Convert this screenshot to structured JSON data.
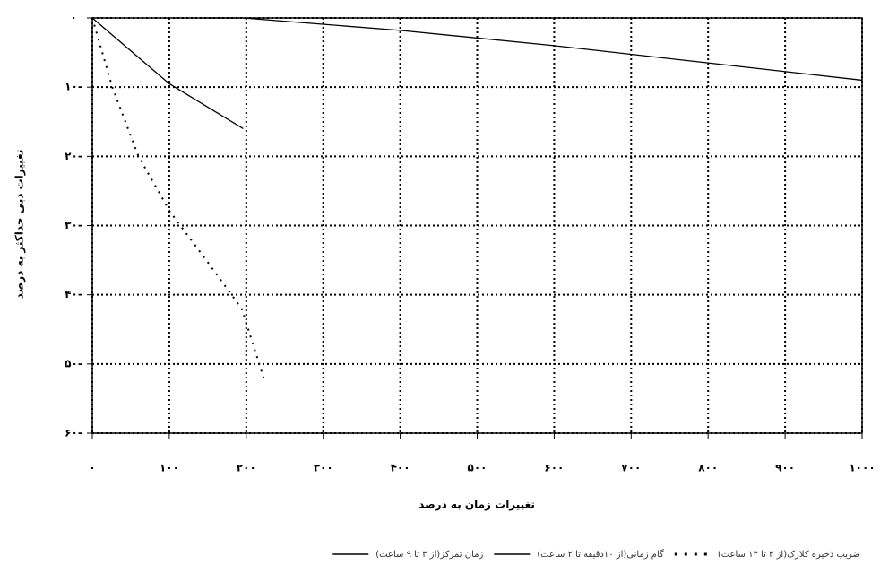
{
  "chart_data": {
    "type": "line",
    "xlabel": "تغییرات زمان به درصد",
    "ylabel": "تغییرات دبی حداکثر به درصد",
    "xlim": [
      0,
      1000
    ],
    "xticks": [
      {
        "value": 0,
        "label": "۰"
      },
      {
        "value": 100,
        "label": "۱۰۰"
      },
      {
        "value": 200,
        "label": "۲۰۰"
      },
      {
        "value": 300,
        "label": "۳۰۰"
      },
      {
        "value": 400,
        "label": "۴۰۰"
      },
      {
        "value": 500,
        "label": "۵۰۰"
      },
      {
        "value": 600,
        "label": "۶۰۰"
      },
      {
        "value": 700,
        "label": "۷۰۰"
      },
      {
        "value": 800,
        "label": "۸۰۰"
      },
      {
        "value": 900,
        "label": "۹۰۰"
      },
      {
        "value": 1000,
        "label": "۱۰۰۰"
      }
    ],
    "ylim": [
      -60,
      0
    ],
    "yticks": [
      {
        "value": 0,
        "label": "۰"
      },
      {
        "value": -10,
        "label": "۱۰-"
      },
      {
        "value": -20,
        "label": "۲۰-"
      },
      {
        "value": -30,
        "label": "۳۰-"
      },
      {
        "value": -40,
        "label": "۴۰-"
      },
      {
        "value": -50,
        "label": "۵۰-"
      },
      {
        "value": -60,
        "label": "۶۰-"
      }
    ],
    "grid": true,
    "series": [
      {
        "name": "ضریب ذخیره کلارک(از ۳ تا ۱۳ ساعت)",
        "color": "#000000",
        "dash": "dotted",
        "x": [
          0,
          26,
          60,
          101,
          148,
          194,
          224
        ],
        "values": [
          0,
          -10,
          -20,
          -28,
          -35,
          -42,
          -52.5
        ]
      },
      {
        "name": "گام زمانی(از ۱۰دقیقه تا ۲ ساعت)",
        "color": "#000000",
        "dash": "solid",
        "x": [
          0,
          100,
          196
        ],
        "values": [
          0,
          -9.5,
          -16
        ]
      },
      {
        "name": "زمان تمرکز(از ۳ تا ۹ ساعت)",
        "color": "#000000",
        "dash": "solid",
        "x": [
          148,
          196,
          400,
          600,
          800,
          1000
        ],
        "values": [
          0,
          0,
          -1.8,
          -4,
          -6.5,
          -9
        ]
      }
    ]
  }
}
